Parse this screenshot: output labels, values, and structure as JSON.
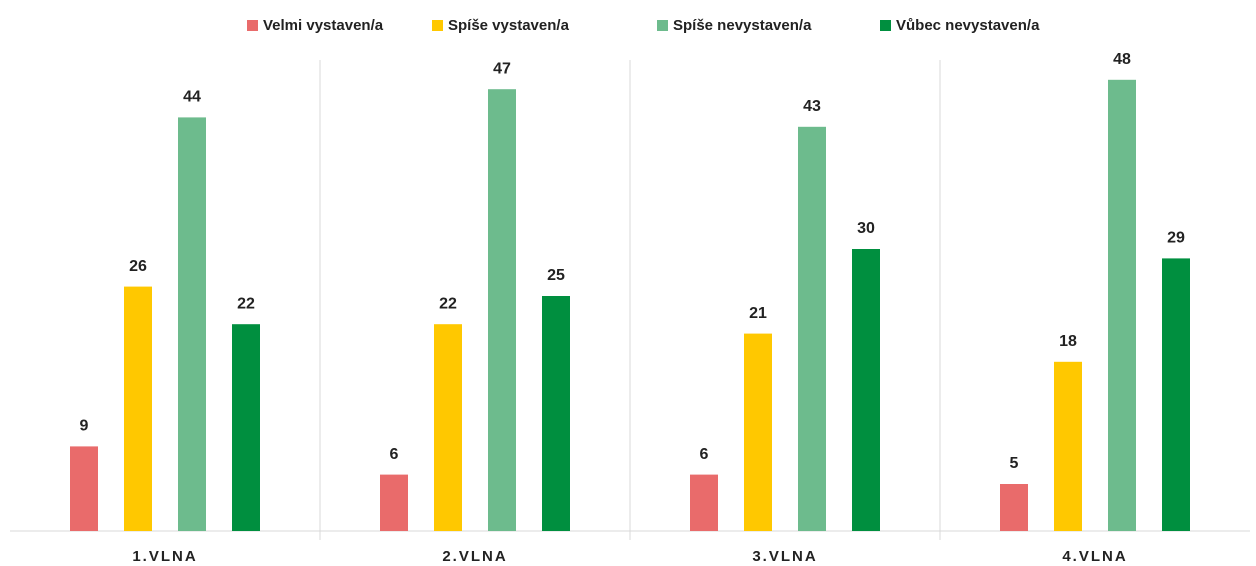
{
  "chart_data": {
    "type": "bar",
    "categories": [
      "1.VLNA",
      "2.VLNA",
      "3.VLNA",
      "4.VLNA"
    ],
    "series": [
      {
        "name": "Velmi vystaven/a",
        "color": "#e96b6b",
        "values": [
          9,
          6,
          6,
          5
        ]
      },
      {
        "name": "Spíše vystaven/a",
        "color": "#ffc800",
        "values": [
          26,
          22,
          21,
          18
        ]
      },
      {
        "name": "Spíše nevystaven/a",
        "color": "#6dbb8d",
        "values": [
          44,
          47,
          43,
          48
        ]
      },
      {
        "name": "Vůbec nevystaven/a",
        "color": "#008f3f",
        "values": [
          22,
          25,
          30,
          29
        ]
      }
    ],
    "ylim": [
      0,
      55
    ],
    "legend": "top"
  }
}
